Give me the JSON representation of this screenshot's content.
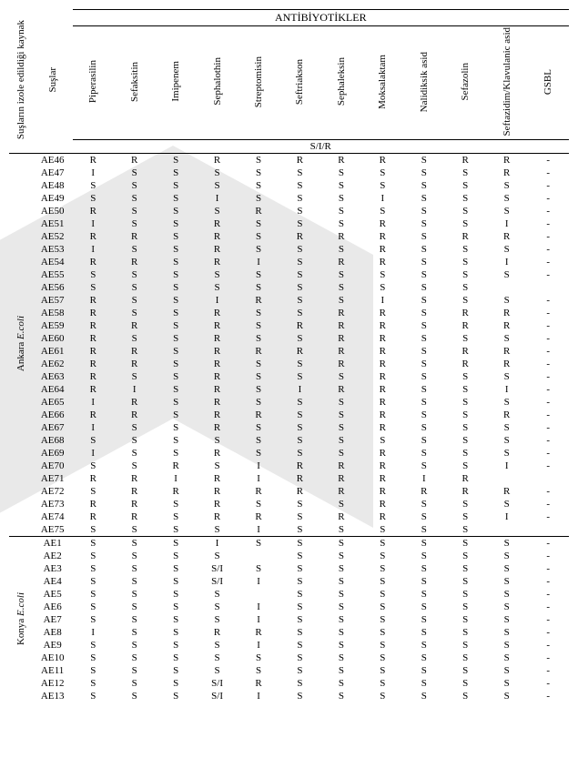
{
  "headers": {
    "source": "Suşların izole edildiği kaynak",
    "strains": "Suşlar",
    "group": "ANTİBİYOTİKLER",
    "sir": "S/I/R",
    "antibiotics": [
      "Piperasilin",
      "Sefaksitin",
      "Imipenem",
      "Sephalothin",
      "Streptomisin",
      "Seftriakson",
      "Sephaleksin",
      "Moksalaktam",
      "Nalidiksik asid",
      "Sefazolin",
      "Seftazidim/Klavulanic asid",
      "GSBL"
    ]
  },
  "groups": [
    {
      "label": "Ankara E.coli",
      "rows": [
        {
          "id": "AE46",
          "v": [
            "R",
            "R",
            "S",
            "R",
            "S",
            "R",
            "R",
            "R",
            "S",
            "R",
            "R",
            "-"
          ]
        },
        {
          "id": "AE47",
          "v": [
            "I",
            "S",
            "S",
            "S",
            "S",
            "S",
            "S",
            "S",
            "S",
            "S",
            "R",
            "-"
          ]
        },
        {
          "id": "AE48",
          "v": [
            "S",
            "S",
            "S",
            "S",
            "S",
            "S",
            "S",
            "S",
            "S",
            "S",
            "S",
            "-"
          ]
        },
        {
          "id": "AE49",
          "v": [
            "S",
            "S",
            "S",
            "I",
            "S",
            "S",
            "S",
            "I",
            "S",
            "S",
            "S",
            "-"
          ]
        },
        {
          "id": "AE50",
          "v": [
            "R",
            "S",
            "S",
            "S",
            "R",
            "S",
            "S",
            "S",
            "S",
            "S",
            "S",
            "-"
          ]
        },
        {
          "id": "AE51",
          "v": [
            "I",
            "S",
            "S",
            "R",
            "S",
            "S",
            "S",
            "R",
            "S",
            "S",
            "I",
            "-"
          ]
        },
        {
          "id": "AE52",
          "v": [
            "R",
            "R",
            "S",
            "R",
            "S",
            "R",
            "R",
            "R",
            "S",
            "R",
            "R",
            "-"
          ]
        },
        {
          "id": "AE53",
          "v": [
            "I",
            "S",
            "S",
            "R",
            "S",
            "S",
            "S",
            "R",
            "S",
            "S",
            "S",
            "-"
          ]
        },
        {
          "id": "AE54",
          "v": [
            "R",
            "R",
            "S",
            "R",
            "I",
            "S",
            "R",
            "R",
            "S",
            "S",
            "I",
            "-"
          ]
        },
        {
          "id": "AE55",
          "v": [
            "S",
            "S",
            "S",
            "S",
            "S",
            "S",
            "S",
            "S",
            "S",
            "S",
            "S",
            "-"
          ]
        },
        {
          "id": "AE56",
          "v": [
            "S",
            "S",
            "S",
            "S",
            "S",
            "S",
            "S",
            "S",
            "S",
            "S",
            "",
            ""
          ]
        },
        {
          "id": "AE57",
          "v": [
            "R",
            "S",
            "S",
            "I",
            "R",
            "S",
            "S",
            "I",
            "S",
            "S",
            "S",
            "-"
          ]
        },
        {
          "id": "AE58",
          "v": [
            "R",
            "S",
            "S",
            "R",
            "S",
            "S",
            "R",
            "R",
            "S",
            "R",
            "R",
            "-"
          ]
        },
        {
          "id": "AE59",
          "v": [
            "R",
            "R",
            "S",
            "R",
            "S",
            "R",
            "R",
            "R",
            "S",
            "R",
            "R",
            "-"
          ]
        },
        {
          "id": "AE60",
          "v": [
            "R",
            "S",
            "S",
            "R",
            "S",
            "S",
            "R",
            "R",
            "S",
            "S",
            "S",
            "-"
          ]
        },
        {
          "id": "AE61",
          "v": [
            "R",
            "R",
            "S",
            "R",
            "R",
            "R",
            "R",
            "R",
            "S",
            "R",
            "R",
            "-"
          ]
        },
        {
          "id": "AE62",
          "v": [
            "R",
            "R",
            "S",
            "R",
            "S",
            "S",
            "R",
            "R",
            "S",
            "R",
            "R",
            "-"
          ]
        },
        {
          "id": "AE63",
          "v": [
            "R",
            "S",
            "S",
            "R",
            "S",
            "S",
            "S",
            "R",
            "S",
            "S",
            "S",
            "-"
          ]
        },
        {
          "id": "AE64",
          "v": [
            "R",
            "I",
            "S",
            "R",
            "S",
            "I",
            "R",
            "R",
            "S",
            "S",
            "I",
            "-"
          ]
        },
        {
          "id": "AE65",
          "v": [
            "I",
            "R",
            "S",
            "R",
            "S",
            "S",
            "S",
            "R",
            "S",
            "S",
            "S",
            "-"
          ]
        },
        {
          "id": "AE66",
          "v": [
            "R",
            "R",
            "S",
            "R",
            "R",
            "S",
            "S",
            "R",
            "S",
            "S",
            "R",
            "-"
          ]
        },
        {
          "id": "AE67",
          "v": [
            "I",
            "S",
            "S",
            "R",
            "S",
            "S",
            "S",
            "R",
            "S",
            "S",
            "S",
            "-"
          ]
        },
        {
          "id": "AE68",
          "v": [
            "S",
            "S",
            "S",
            "S",
            "S",
            "S",
            "S",
            "S",
            "S",
            "S",
            "S",
            "-"
          ]
        },
        {
          "id": "AE69",
          "v": [
            "I",
            "S",
            "S",
            "R",
            "S",
            "S",
            "S",
            "R",
            "S",
            "S",
            "S",
            "-"
          ]
        },
        {
          "id": "AE70",
          "v": [
            "S",
            "S",
            "R",
            "S",
            "I",
            "R",
            "R",
            "R",
            "S",
            "S",
            "I",
            "-"
          ]
        },
        {
          "id": "AE71",
          "v": [
            "R",
            "R",
            "I",
            "R",
            "I",
            "R",
            "R",
            "R",
            "I",
            "R",
            "",
            ""
          ]
        },
        {
          "id": "AE72",
          "v": [
            "S",
            "R",
            "R",
            "R",
            "R",
            "R",
            "R",
            "R",
            "R",
            "R",
            "R",
            "-"
          ]
        },
        {
          "id": "AE73",
          "v": [
            "R",
            "R",
            "S",
            "R",
            "S",
            "S",
            "S",
            "R",
            "S",
            "S",
            "S",
            "-"
          ]
        },
        {
          "id": "AE74",
          "v": [
            "R",
            "R",
            "S",
            "R",
            "R",
            "S",
            "R",
            "R",
            "S",
            "S",
            "I",
            "-"
          ]
        },
        {
          "id": "AE75",
          "v": [
            "S",
            "S",
            "S",
            "S",
            "I",
            "S",
            "S",
            "S",
            "S",
            "S",
            "",
            ""
          ]
        }
      ]
    },
    {
      "label": "Konya E.coli",
      "rows": [
        {
          "id": "AE1",
          "v": [
            "S",
            "S",
            "S",
            "I",
            "S",
            "S",
            "S",
            "S",
            "S",
            "S",
            "S",
            "-"
          ]
        },
        {
          "id": "AE2",
          "v": [
            "S",
            "S",
            "S",
            "S",
            "",
            "S",
            "S",
            "S",
            "S",
            "S",
            "S",
            "-"
          ]
        },
        {
          "id": "AE3",
          "v": [
            "S",
            "S",
            "S",
            "S/I",
            "S",
            "S",
            "S",
            "S",
            "S",
            "S",
            "S",
            "-"
          ]
        },
        {
          "id": "AE4",
          "v": [
            "S",
            "S",
            "S",
            "S/I",
            "I",
            "S",
            "S",
            "S",
            "S",
            "S",
            "S",
            "-"
          ]
        },
        {
          "id": "AE5",
          "v": [
            "S",
            "S",
            "S",
            "S",
            "",
            "S",
            "S",
            "S",
            "S",
            "S",
            "S",
            "-"
          ]
        },
        {
          "id": "AE6",
          "v": [
            "S",
            "S",
            "S",
            "S",
            "I",
            "S",
            "S",
            "S",
            "S",
            "S",
            "S",
            "-"
          ]
        },
        {
          "id": "AE7",
          "v": [
            "S",
            "S",
            "S",
            "S",
            "I",
            "S",
            "S",
            "S",
            "S",
            "S",
            "S",
            "-"
          ]
        },
        {
          "id": "AE8",
          "v": [
            "I",
            "S",
            "S",
            "R",
            "R",
            "S",
            "S",
            "S",
            "S",
            "S",
            "S",
            "-"
          ]
        },
        {
          "id": "AE9",
          "v": [
            "S",
            "S",
            "S",
            "S",
            "I",
            "S",
            "S",
            "S",
            "S",
            "S",
            "S",
            "-"
          ]
        },
        {
          "id": "AE10",
          "v": [
            "S",
            "S",
            "S",
            "S",
            "S",
            "S",
            "S",
            "S",
            "S",
            "S",
            "S",
            "-"
          ]
        },
        {
          "id": "AE11",
          "v": [
            "S",
            "S",
            "S",
            "S",
            "S",
            "S",
            "S",
            "S",
            "S",
            "S",
            "S",
            "-"
          ]
        },
        {
          "id": "AE12",
          "v": [
            "S",
            "S",
            "S",
            "S/I",
            "R",
            "S",
            "S",
            "S",
            "S",
            "S",
            "S",
            "-"
          ]
        },
        {
          "id": "AE13",
          "v": [
            "S",
            "S",
            "S",
            "S/I",
            "I",
            "S",
            "S",
            "S",
            "S",
            "S",
            "S",
            "-"
          ]
        }
      ]
    }
  ]
}
